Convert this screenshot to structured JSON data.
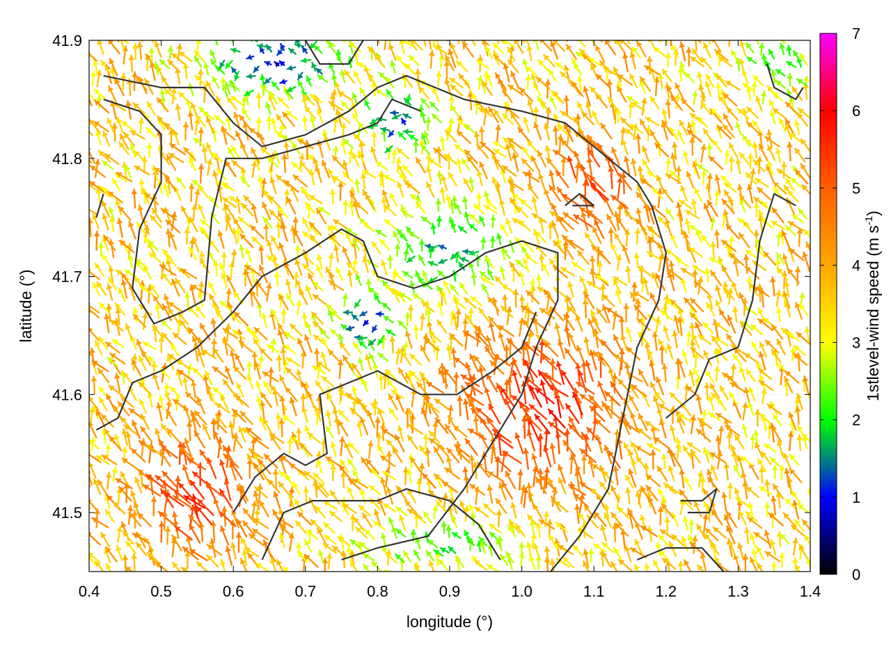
{
  "chart_data": {
    "type": "vector-field",
    "xlabel": "longitude (°)",
    "ylabel": "latitude (°)",
    "xlim": [
      0.4,
      1.4
    ],
    "ylim": [
      41.45,
      41.9
    ],
    "x_ticks": [
      "0.4",
      "0.5",
      "0.6",
      "0.7",
      "0.8",
      "0.9",
      "1.0",
      "1.1",
      "1.2",
      "1.3",
      "1.4"
    ],
    "y_ticks": [
      "41.5",
      "41.6",
      "41.7",
      "41.8",
      "41.9"
    ],
    "x_tick_values": [
      0.4,
      0.5,
      0.6,
      0.7,
      0.8,
      0.9,
      1.0,
      1.1,
      1.2,
      1.3,
      1.4
    ],
    "y_tick_values": [
      41.5,
      41.6,
      41.7,
      41.8,
      41.9
    ],
    "colorbar": {
      "label": "1stlevel-wind speed (m s",
      "label_superscript": "-1",
      "label_close": ")",
      "range": [
        0,
        7
      ],
      "ticks": [
        "0",
        "1",
        "2",
        "3",
        "4",
        "5",
        "6",
        "7"
      ],
      "tick_values": [
        0,
        1,
        2,
        3,
        4,
        5,
        6,
        7
      ],
      "colormap_stops": [
        {
          "value": 0,
          "color": "#000000"
        },
        {
          "value": 1,
          "color": "#0000ff"
        },
        {
          "value": 1.6,
          "color": "#00a060"
        },
        {
          "value": 2,
          "color": "#00ff00"
        },
        {
          "value": 3,
          "color": "#ffff00"
        },
        {
          "value": 4,
          "color": "#ffa500"
        },
        {
          "value": 5,
          "color": "#ff6000"
        },
        {
          "value": 6,
          "color": "#ff0000"
        },
        {
          "value": 7,
          "color": "#ff00ff"
        }
      ]
    },
    "contour_color": "#333333",
    "grid": true,
    "wind_field": {
      "grid_spacing_deg": [
        0.0125,
        0.0125
      ],
      "dominant_direction": "toward north-northwest",
      "calm_zones": [
        {
          "center": [
            0.79,
            41.66
          ],
          "radius": [
            0.04,
            0.025
          ],
          "speed": 0.8
        },
        {
          "center": [
            0.66,
            41.88
          ],
          "radius": [
            0.1,
            0.03
          ],
          "speed": 0.9
        },
        {
          "center": [
            0.83,
            41.83
          ],
          "radius": [
            0.05,
            0.025
          ],
          "speed": 1.2
        },
        {
          "center": [
            0.9,
            41.72
          ],
          "radius": [
            0.09,
            0.04
          ],
          "speed": 1.6
        },
        {
          "center": [
            0.9,
            41.47
          ],
          "radius": [
            0.12,
            0.02
          ],
          "speed": 2.0
        },
        {
          "center": [
            1.36,
            41.88
          ],
          "radius": [
            0.05,
            0.03
          ],
          "speed": 2.0
        }
      ],
      "strong_zones": [
        {
          "center": [
            1.03,
            41.58
          ],
          "radius": [
            0.12,
            0.07
          ],
          "speed": 5.6
        },
        {
          "center": [
            0.55,
            41.51
          ],
          "radius": [
            0.08,
            0.05
          ],
          "speed": 5.5
        },
        {
          "center": [
            1.1,
            41.77
          ],
          "radius": [
            0.06,
            0.04
          ],
          "speed": 5.4
        }
      ],
      "background_speed": 3.6
    },
    "contour_lines": [
      [
        [
          0.42,
          41.87
        ],
        [
          0.5,
          41.86
        ],
        [
          0.56,
          41.86
        ],
        [
          0.6,
          41.83
        ],
        [
          0.64,
          41.81
        ],
        [
          0.7,
          41.82
        ],
        [
          0.76,
          41.84
        ],
        [
          0.8,
          41.86
        ],
        [
          0.84,
          41.87
        ],
        [
          0.88,
          41.86
        ],
        [
          0.92,
          41.85
        ],
        [
          1.0,
          41.84
        ],
        [
          1.06,
          41.83
        ],
        [
          1.12,
          41.8
        ],
        [
          1.16,
          41.78
        ],
        [
          1.18,
          41.76
        ],
        [
          1.2,
          41.72
        ],
        [
          1.19,
          41.68
        ],
        [
          1.16,
          41.64
        ],
        [
          1.14,
          41.58
        ],
        [
          1.12,
          41.52
        ],
        [
          1.08,
          41.48
        ],
        [
          1.04,
          41.45
        ]
      ],
      [
        [
          0.42,
          41.85
        ],
        [
          0.47,
          41.84
        ],
        [
          0.5,
          41.82
        ],
        [
          0.5,
          41.78
        ],
        [
          0.47,
          41.74
        ],
        [
          0.46,
          41.69
        ],
        [
          0.49,
          41.66
        ],
        [
          0.53,
          41.67
        ],
        [
          0.56,
          41.68
        ],
        [
          0.57,
          41.75
        ],
        [
          0.59,
          41.8
        ],
        [
          0.64,
          41.8
        ],
        [
          0.7,
          41.81
        ],
        [
          0.76,
          41.82
        ],
        [
          0.8,
          41.83
        ],
        [
          0.82,
          41.85
        ],
        [
          0.86,
          41.84
        ]
      ],
      [
        [
          0.41,
          41.57
        ],
        [
          0.44,
          41.58
        ],
        [
          0.46,
          41.61
        ],
        [
          0.5,
          41.62
        ],
        [
          0.55,
          41.64
        ],
        [
          0.6,
          41.67
        ],
        [
          0.64,
          41.7
        ],
        [
          0.7,
          41.72
        ],
        [
          0.75,
          41.74
        ],
        [
          0.78,
          41.73
        ],
        [
          0.8,
          41.7
        ],
        [
          0.85,
          41.69
        ],
        [
          0.9,
          41.7
        ],
        [
          0.95,
          41.72
        ],
        [
          1.0,
          41.73
        ],
        [
          1.05,
          41.72
        ],
        [
          1.05,
          41.68
        ],
        [
          1.02,
          41.64
        ],
        [
          1.0,
          41.6
        ],
        [
          0.96,
          41.56
        ],
        [
          0.92,
          41.52
        ],
        [
          0.87,
          41.48
        ],
        [
          0.8,
          41.47
        ],
        [
          0.75,
          41.46
        ]
      ],
      [
        [
          0.6,
          41.5
        ],
        [
          0.63,
          41.53
        ],
        [
          0.67,
          41.55
        ],
        [
          0.7,
          41.54
        ],
        [
          0.73,
          41.55
        ],
        [
          0.72,
          41.6
        ],
        [
          0.76,
          41.61
        ],
        [
          0.8,
          41.62
        ],
        [
          0.86,
          41.6
        ],
        [
          0.91,
          41.6
        ],
        [
          0.96,
          41.62
        ],
        [
          1.0,
          41.64
        ],
        [
          1.02,
          41.67
        ]
      ],
      [
        [
          0.64,
          41.46
        ],
        [
          0.67,
          41.5
        ],
        [
          0.71,
          41.51
        ],
        [
          0.75,
          41.51
        ],
        [
          0.8,
          41.51
        ],
        [
          0.84,
          41.52
        ],
        [
          0.9,
          41.51
        ],
        [
          0.94,
          41.49
        ],
        [
          0.97,
          41.46
        ]
      ],
      [
        [
          1.16,
          41.46
        ],
        [
          1.2,
          41.47
        ],
        [
          1.25,
          41.47
        ],
        [
          1.28,
          41.45
        ]
      ],
      [
        [
          1.2,
          41.58
        ],
        [
          1.24,
          41.6
        ],
        [
          1.26,
          41.63
        ],
        [
          1.3,
          41.64
        ],
        [
          1.32,
          41.68
        ],
        [
          1.33,
          41.73
        ],
        [
          1.35,
          41.77
        ],
        [
          1.38,
          41.76
        ]
      ],
      [
        [
          1.22,
          41.51
        ],
        [
          1.25,
          41.51
        ],
        [
          1.27,
          41.52
        ],
        [
          1.26,
          41.5
        ],
        [
          1.23,
          41.5
        ]
      ],
      [
        [
          1.34,
          41.88
        ],
        [
          1.35,
          41.86
        ],
        [
          1.38,
          41.85
        ],
        [
          1.39,
          41.86
        ]
      ],
      [
        [
          1.06,
          41.76
        ],
        [
          1.08,
          41.77
        ],
        [
          1.1,
          41.76
        ],
        [
          1.07,
          41.76
        ]
      ],
      [
        [
          0.7,
          41.9
        ],
        [
          0.72,
          41.88
        ],
        [
          0.76,
          41.88
        ],
        [
          0.78,
          41.9
        ]
      ],
      [
        [
          0.41,
          41.75
        ],
        [
          0.42,
          41.77
        ]
      ]
    ]
  }
}
